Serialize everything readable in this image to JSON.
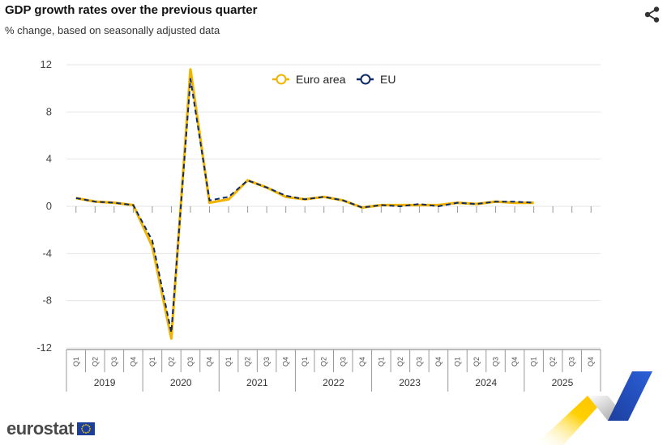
{
  "header": {
    "title": "GDP growth rates over the previous quarter",
    "subtitle": "% change, based on seasonally adjusted data"
  },
  "footer": {
    "logo_text": "eurostat"
  },
  "icons": {
    "share": "share-icon",
    "flag": "eu-flag-icon"
  },
  "colors": {
    "euro_area": "#f0b400",
    "eu": "#0e2a6b",
    "grid": "#e6e6e6",
    "axis": "#777777"
  },
  "chart_data": {
    "type": "line",
    "title": "GDP growth rates over the previous quarter",
    "subtitle": "% change, based on seasonally adjusted data",
    "xlabel": "",
    "ylabel": "",
    "ylim": [
      -12,
      12
    ],
    "yticks": [
      12,
      8,
      4,
      0,
      -4,
      -8,
      -12
    ],
    "grid": true,
    "legend_position": "top-center",
    "years": [
      "2019",
      "2020",
      "2021",
      "2022",
      "2023",
      "2024",
      "2025"
    ],
    "quarters": [
      "Q1",
      "Q2",
      "Q3",
      "Q4"
    ],
    "series": [
      {
        "name": "Euro area",
        "color": "#f0b400",
        "values": [
          0.7,
          0.4,
          0.3,
          0.1,
          -3.4,
          -11.2,
          11.6,
          0.3,
          0.6,
          2.2,
          1.6,
          0.8,
          0.6,
          0.8,
          0.5,
          -0.1,
          0.1,
          0.1,
          0.1,
          0.1,
          0.3,
          0.2,
          0.4,
          0.3,
          0.3,
          null,
          null,
          null
        ]
      },
      {
        "name": "EU",
        "color": "#0e2a6b",
        "values": [
          0.7,
          0.4,
          0.3,
          0.1,
          -2.9,
          -10.7,
          10.8,
          0.5,
          0.8,
          2.2,
          1.6,
          0.9,
          0.6,
          0.8,
          0.5,
          -0.1,
          0.1,
          0.0,
          0.2,
          0.0,
          0.3,
          0.2,
          0.4,
          0.4,
          0.3,
          null,
          null,
          null
        ]
      }
    ]
  }
}
